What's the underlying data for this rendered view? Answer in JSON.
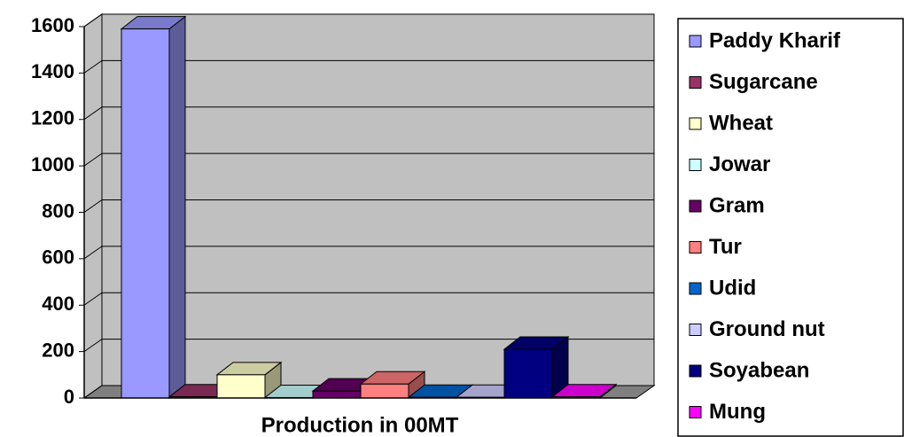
{
  "chart_data": {
    "type": "bar3d",
    "categories": [
      "Production in 00MT"
    ],
    "ylim": [
      0,
      1600
    ],
    "yticks": [
      0,
      200,
      400,
      600,
      800,
      1000,
      1200,
      1400,
      1600
    ],
    "grid": true,
    "series": [
      {
        "name": "Paddy Kharif",
        "color": "#9999ff",
        "values": [
          1590
        ]
      },
      {
        "name": "Sugarcane",
        "color": "#993366",
        "values": [
          5
        ]
      },
      {
        "name": "Wheat",
        "color": "#ffffcc",
        "values": [
          100
        ]
      },
      {
        "name": "Jowar",
        "color": "#ccffff",
        "values": [
          2
        ]
      },
      {
        "name": "Gram",
        "color": "#660066",
        "values": [
          30
        ]
      },
      {
        "name": "Tur",
        "color": "#ff8080",
        "values": [
          60
        ]
      },
      {
        "name": "Udid",
        "color": "#0066cc",
        "values": [
          3
        ]
      },
      {
        "name": "Ground nut",
        "color": "#ccccff",
        "values": [
          3
        ]
      },
      {
        "name": "Soyabean",
        "color": "#000080",
        "values": [
          210
        ]
      },
      {
        "name": "Mung",
        "color": "#ff00ff",
        "values": [
          5
        ]
      }
    ]
  }
}
